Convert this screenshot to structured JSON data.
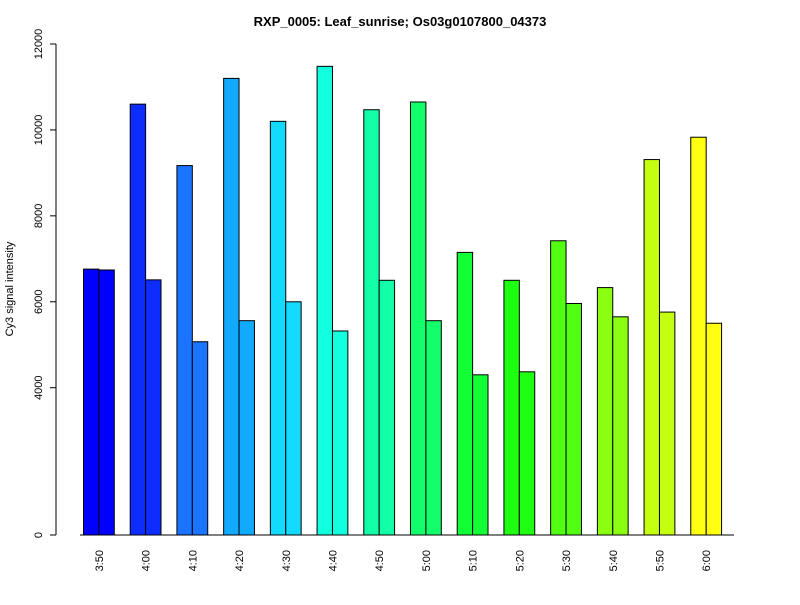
{
  "chart_data": {
    "type": "bar",
    "title": "RXP_0005: Leaf_sunrise; Os03g0107800_04373",
    "xlabel": "",
    "ylabel": "Cy3 signal intensity",
    "categories": [
      "3:50",
      "4:00",
      "4:10",
      "4:20",
      "4:30",
      "4:40",
      "4:50",
      "5:00",
      "5:10",
      "5:20",
      "5:30",
      "5:40",
      "5:50",
      "6:00"
    ],
    "series": [
      {
        "values": [
          6760,
          10600,
          9170,
          11200,
          10200,
          11480,
          10470,
          10650,
          7150,
          6500,
          7420,
          6330,
          9310,
          9830
        ]
      },
      {
        "values": [
          6740,
          6510,
          5070,
          5560,
          6000,
          5320,
          6500,
          5560,
          4300,
          4370,
          5960,
          5650,
          5760,
          5500
        ]
      }
    ],
    "bar_colors": [
      "#0000FF",
      "#0D2DFF",
      "#1A74FF",
      "#12AAFF",
      "#12DBFF",
      "#12FFE0",
      "#12FFA8",
      "#12FF6B",
      "#12FF35",
      "#1FFF12",
      "#52FF12",
      "#8AFF12",
      "#C4FF12",
      "#FFFF12"
    ],
    "yticks": [
      0,
      4000,
      6000,
      8000,
      10000,
      12000
    ],
    "ytick_labels": [
      "0",
      "4000",
      "6000",
      "8000",
      "10000",
      "12000"
    ],
    "ylim": [
      0,
      12000
    ],
    "y_scale_breaks": [
      [
        0,
        0
      ],
      [
        4000,
        0.3
      ],
      [
        12000,
        1
      ]
    ],
    "grid": false,
    "legend": "none"
  }
}
